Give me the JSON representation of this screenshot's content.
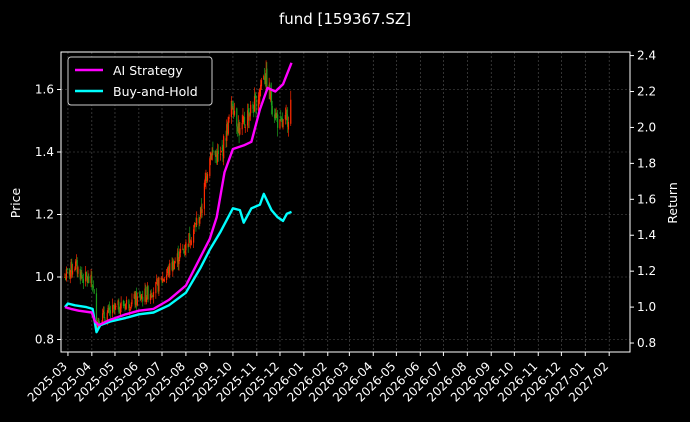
{
  "chart_data": {
    "type": "line",
    "title": "fund [159367.SZ]",
    "ylabel_left": "Price",
    "ylabel_right": "Return",
    "xlabel": "",
    "x_range": [
      "2025-02-20",
      "2027-02-28"
    ],
    "y_left_range": [
      0.76,
      1.72
    ],
    "y_right_range": [
      0.75,
      2.42
    ],
    "x_ticks": [
      "2025-03",
      "2025-04",
      "2025-05",
      "2025-06",
      "2025-07",
      "2025-08",
      "2025-09",
      "2025-10",
      "2025-11",
      "2025-12",
      "2026-01",
      "2026-02",
      "2026-03",
      "2026-04",
      "2026-05",
      "2026-06",
      "2026-07",
      "2026-08",
      "2026-09",
      "2026-10",
      "2026-11",
      "2026-12",
      "2027-01",
      "2027-02"
    ],
    "y_left_ticks": [
      0.8,
      1.0,
      1.2,
      1.4,
      1.6
    ],
    "y_right_ticks": [
      0.8,
      1.0,
      1.2,
      1.4,
      1.6,
      1.8,
      2.0,
      2.2,
      2.4
    ],
    "grid": true,
    "legend_position": "top-left",
    "colors": {
      "background": "#000000",
      "grid": "#555555",
      "ai_strategy": "#ff00ff",
      "buy_and_hold": "#00ffff",
      "candle_up": "#ff2a00",
      "candle_down": "#1c9e1c"
    },
    "candles": {
      "y_axis": "left",
      "anchors": [
        [
          "2025-02-25",
          1.0
        ],
        [
          "2025-03-10",
          1.04
        ],
        [
          "2025-03-20",
          1.0
        ],
        [
          "2025-04-02",
          0.98
        ],
        [
          "2025-04-07",
          0.86
        ],
        [
          "2025-04-20",
          0.88
        ],
        [
          "2025-05-10",
          0.91
        ],
        [
          "2025-06-01",
          0.93
        ],
        [
          "2025-06-25",
          0.97
        ],
        [
          "2025-07-15",
          1.04
        ],
        [
          "2025-08-01",
          1.1
        ],
        [
          "2025-08-20",
          1.2
        ],
        [
          "2025-09-01",
          1.4
        ],
        [
          "2025-09-15",
          1.38
        ],
        [
          "2025-10-01",
          1.56
        ],
        [
          "2025-10-10",
          1.46
        ],
        [
          "2025-10-20",
          1.52
        ],
        [
          "2025-11-01",
          1.56
        ],
        [
          "2025-11-10",
          1.66
        ],
        [
          "2025-11-20",
          1.56
        ],
        [
          "2025-12-01",
          1.48
        ],
        [
          "2025-12-10",
          1.5
        ],
        [
          "2025-12-16",
          1.57
        ]
      ]
    },
    "series": [
      {
        "name": "AI Strategy",
        "axis": "right",
        "points": [
          [
            "2025-02-25",
            1.0
          ],
          [
            "2025-03-05",
            0.99
          ],
          [
            "2025-03-15",
            0.98
          ],
          [
            "2025-04-01",
            0.97
          ],
          [
            "2025-04-05",
            0.92
          ],
          [
            "2025-04-10",
            0.9
          ],
          [
            "2025-04-25",
            0.93
          ],
          [
            "2025-05-15",
            0.96
          ],
          [
            "2025-06-01",
            0.98
          ],
          [
            "2025-06-20",
            0.99
          ],
          [
            "2025-07-10",
            1.04
          ],
          [
            "2025-08-01",
            1.12
          ],
          [
            "2025-08-20",
            1.28
          ],
          [
            "2025-09-01",
            1.38
          ],
          [
            "2025-09-10",
            1.5
          ],
          [
            "2025-09-20",
            1.75
          ],
          [
            "2025-10-01",
            1.88
          ],
          [
            "2025-10-15",
            1.9
          ],
          [
            "2025-10-25",
            1.92
          ],
          [
            "2025-11-05",
            2.1
          ],
          [
            "2025-11-15",
            2.22
          ],
          [
            "2025-11-25",
            2.2
          ],
          [
            "2025-12-05",
            2.24
          ],
          [
            "2025-12-16",
            2.36
          ]
        ]
      },
      {
        "name": "Buy-and-Hold",
        "axis": "right",
        "points": [
          [
            "2025-02-25",
            1.0
          ],
          [
            "2025-03-01",
            1.02
          ],
          [
            "2025-03-10",
            1.01
          ],
          [
            "2025-03-25",
            1.0
          ],
          [
            "2025-04-02",
            0.99
          ],
          [
            "2025-04-07",
            0.86
          ],
          [
            "2025-04-12",
            0.9
          ],
          [
            "2025-04-25",
            0.92
          ],
          [
            "2025-05-15",
            0.94
          ],
          [
            "2025-06-01",
            0.96
          ],
          [
            "2025-06-20",
            0.97
          ],
          [
            "2025-07-10",
            1.01
          ],
          [
            "2025-08-01",
            1.08
          ],
          [
            "2025-08-20",
            1.22
          ],
          [
            "2025-09-01",
            1.32
          ],
          [
            "2025-09-15",
            1.42
          ],
          [
            "2025-10-01",
            1.55
          ],
          [
            "2025-10-10",
            1.54
          ],
          [
            "2025-10-15",
            1.47
          ],
          [
            "2025-10-25",
            1.55
          ],
          [
            "2025-11-05",
            1.57
          ],
          [
            "2025-11-10",
            1.63
          ],
          [
            "2025-11-20",
            1.54
          ],
          [
            "2025-11-28",
            1.5
          ],
          [
            "2025-12-05",
            1.48
          ],
          [
            "2025-12-10",
            1.52
          ],
          [
            "2025-12-16",
            1.53
          ]
        ]
      }
    ]
  }
}
